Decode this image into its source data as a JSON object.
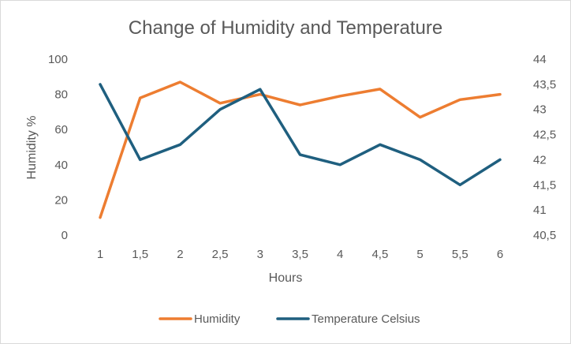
{
  "chart_data": {
    "type": "line",
    "title": "Change of Humidity and Temperature",
    "xlabel": "Hours",
    "ylabel": "Humidity %",
    "y2label": "",
    "categories": [
      "1",
      "1,5",
      "2",
      "2,5",
      "3",
      "3,5",
      "4",
      "4,5",
      "5",
      "5,5",
      "6"
    ],
    "ylim": [
      0,
      100
    ],
    "y_ticks": [
      "0",
      "20",
      "40",
      "60",
      "80",
      "100"
    ],
    "y2lim": [
      40.5,
      44
    ],
    "y2_ticks": [
      "40,5",
      "41",
      "41,5",
      "42",
      "42,5",
      "43",
      "43,5",
      "44"
    ],
    "grid": false,
    "legend_position": "bottom",
    "series": [
      {
        "name": "Humidity",
        "axis": "left",
        "color": "#ED7D31",
        "values": [
          10,
          78,
          87,
          75,
          80,
          74,
          79,
          83,
          67,
          77,
          80
        ]
      },
      {
        "name": "Temperature Celsius",
        "axis": "right",
        "color": "#1F5F7F",
        "values": [
          43.5,
          42.0,
          42.3,
          43.0,
          43.4,
          42.1,
          41.9,
          42.3,
          42.0,
          41.5,
          42.0
        ]
      }
    ]
  }
}
